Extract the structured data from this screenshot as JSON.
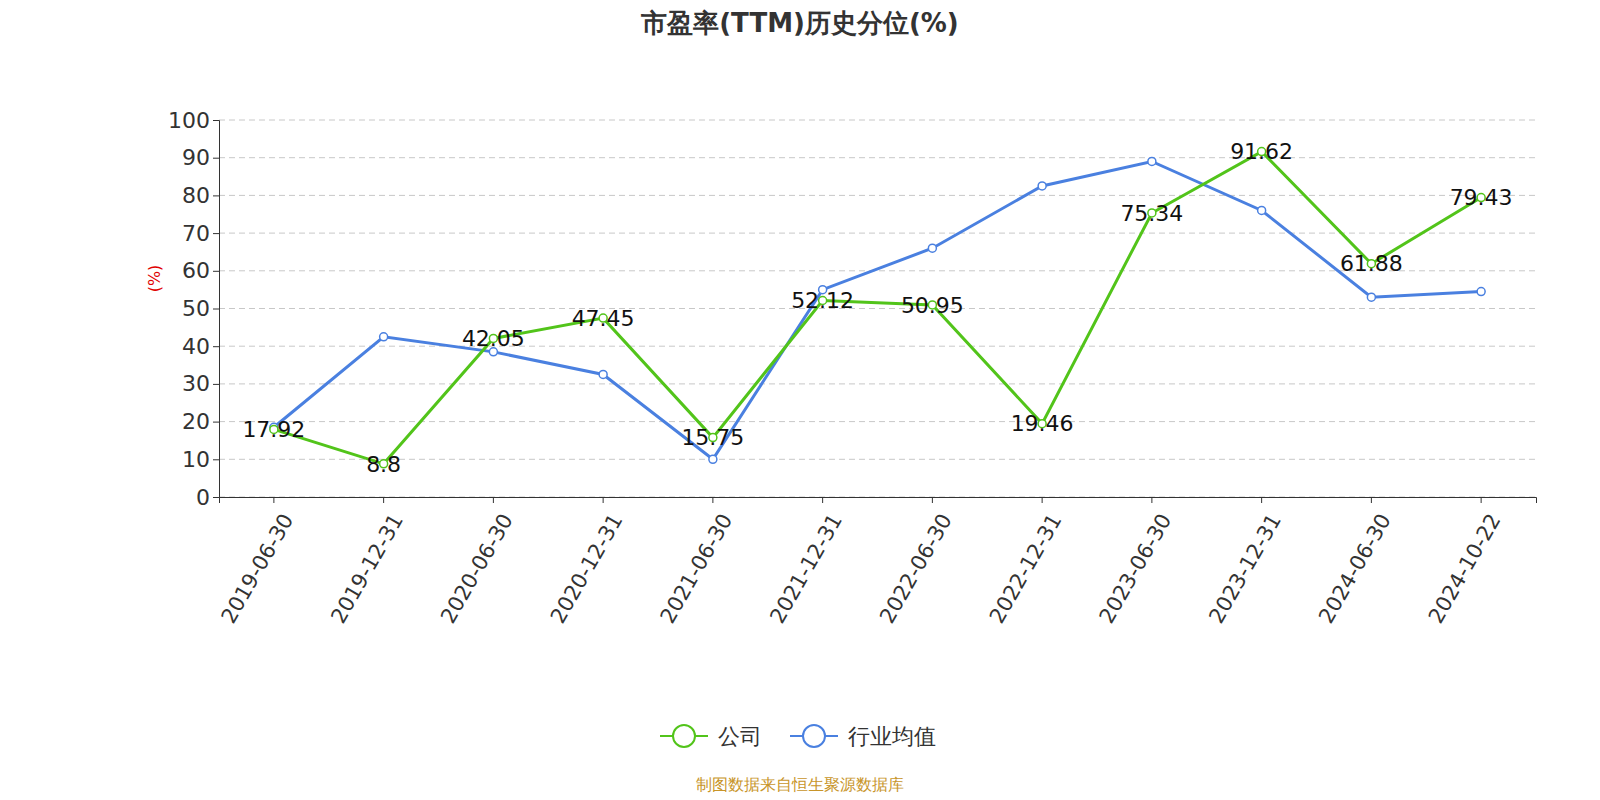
{
  "chart_data": {
    "type": "line",
    "title": "市盈率(TTM)历史分位(%)",
    "y_label": "(%)",
    "source": "制图数据来自恒生聚源数据库",
    "categories": [
      "2019-06-30",
      "2019-12-31",
      "2020-06-30",
      "2020-12-31",
      "2021-06-30",
      "2021-12-31",
      "2022-06-30",
      "2022-12-31",
      "2023-06-30",
      "2023-12-31",
      "2024-06-30",
      "2024-10-22"
    ],
    "series": [
      {
        "name": "公司",
        "color": "#52c41a",
        "marker": "circle",
        "data_labels": true,
        "values": [
          17.92,
          8.8,
          42.05,
          47.45,
          15.75,
          52.12,
          50.95,
          19.46,
          75.34,
          91.62,
          61.88,
          79.43
        ]
      },
      {
        "name": "行业均值",
        "color": "#4a80e0",
        "marker": "circle",
        "values": [
          18.5,
          42.5,
          38.5,
          32.5,
          10,
          55,
          66,
          82.5,
          89,
          76,
          53,
          54.5
        ]
      }
    ],
    "ylim": [
      0,
      100
    ],
    "yticks": [
      0,
      10,
      20,
      30,
      40,
      50,
      60,
      70,
      80,
      90,
      100
    ],
    "grid": true,
    "legend": "bottom"
  }
}
